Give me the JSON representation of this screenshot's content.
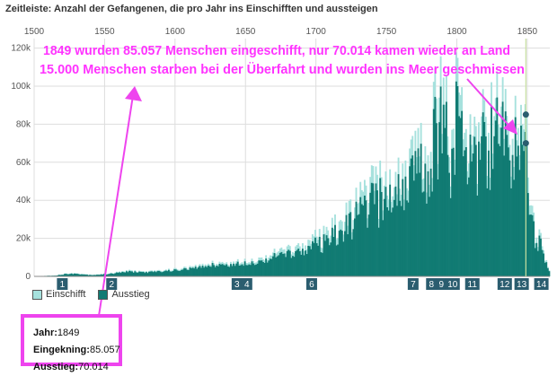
{
  "header": {
    "title": "Zeitleiste: Anzahl der Gefangenen, die pro Jahr ins Einschifften und aussteigen"
  },
  "colors": {
    "einschifft": "#a6e1dd",
    "ausstieg": "#117b73",
    "annotation": "#ff33ff",
    "marker": "#2b5d6f"
  },
  "chart_data": {
    "type": "bar",
    "x_ticks": [
      "1500",
      "1550",
      "1600",
      "1650",
      "1700",
      "1750",
      "1800",
      "1850"
    ],
    "y_ticks": [
      "0",
      "20k",
      "40k",
      "60k",
      "80k",
      "100k",
      "120k"
    ],
    "xlim": [
      1500,
      1866
    ],
    "ylim": [
      0,
      125000
    ],
    "series": [
      {
        "name": "Einschifft",
        "anchors": [
          [
            1500,
            100
          ],
          [
            1514,
            500
          ],
          [
            1525,
            1800
          ],
          [
            1540,
            900
          ],
          [
            1548,
            1200
          ],
          [
            1555,
            1700
          ],
          [
            1565,
            3000
          ],
          [
            1580,
            2500
          ],
          [
            1600,
            3800
          ],
          [
            1615,
            5200
          ],
          [
            1625,
            7000
          ],
          [
            1640,
            7000
          ],
          [
            1650,
            8500
          ],
          [
            1660,
            9000
          ],
          [
            1670,
            12500
          ],
          [
            1680,
            14000
          ],
          [
            1690,
            15800
          ],
          [
            1700,
            21000
          ],
          [
            1710,
            26000
          ],
          [
            1720,
            35000
          ],
          [
            1728,
            41000
          ],
          [
            1735,
            52000
          ],
          [
            1745,
            53000
          ],
          [
            1752,
            56000
          ],
          [
            1760,
            65000
          ],
          [
            1770,
            72000
          ],
          [
            1780,
            76000
          ],
          [
            1783,
            100000
          ],
          [
            1790,
            110000
          ],
          [
            1795,
            85000
          ],
          [
            1800,
            108000
          ],
          [
            1805,
            98000
          ],
          [
            1810,
            95000
          ],
          [
            1815,
            80000
          ],
          [
            1820,
            97000
          ],
          [
            1825,
            88000
          ],
          [
            1829,
            102000
          ],
          [
            1835,
            93000
          ],
          [
            1840,
            85000
          ],
          [
            1845,
            99000
          ],
          [
            1849,
            85057
          ],
          [
            1851,
            62000
          ],
          [
            1855,
            28000
          ],
          [
            1860,
            24000
          ],
          [
            1863,
            8000
          ],
          [
            1866,
            2000
          ]
        ]
      },
      {
        "name": "Ausstieg",
        "anchors": [
          [
            1500,
            80
          ],
          [
            1514,
            400
          ],
          [
            1525,
            1500
          ],
          [
            1540,
            700
          ],
          [
            1548,
            1000
          ],
          [
            1555,
            1400
          ],
          [
            1565,
            2500
          ],
          [
            1580,
            2100
          ],
          [
            1600,
            3200
          ],
          [
            1615,
            4400
          ],
          [
            1625,
            6000
          ],
          [
            1640,
            6000
          ],
          [
            1650,
            7200
          ],
          [
            1660,
            7600
          ],
          [
            1670,
            10500
          ],
          [
            1680,
            11800
          ],
          [
            1690,
            13200
          ],
          [
            1700,
            17500
          ],
          [
            1710,
            21600
          ],
          [
            1720,
            29000
          ],
          [
            1728,
            34500
          ],
          [
            1735,
            43500
          ],
          [
            1745,
            45000
          ],
          [
            1752,
            48000
          ],
          [
            1760,
            56000
          ],
          [
            1770,
            62000
          ],
          [
            1780,
            66000
          ],
          [
            1783,
            86000
          ],
          [
            1790,
            95000
          ],
          [
            1795,
            74000
          ],
          [
            1800,
            94000
          ],
          [
            1805,
            86000
          ],
          [
            1810,
            83000
          ],
          [
            1815,
            70000
          ],
          [
            1820,
            85000
          ],
          [
            1825,
            77000
          ],
          [
            1829,
            89000
          ],
          [
            1835,
            82000
          ],
          [
            1840,
            75000
          ],
          [
            1845,
            87000
          ],
          [
            1849,
            70014
          ],
          [
            1851,
            54000
          ],
          [
            1855,
            24000
          ],
          [
            1860,
            21000
          ],
          [
            1863,
            7000
          ],
          [
            1866,
            1700
          ]
        ]
      }
    ],
    "markers": [
      {
        "label": "1",
        "year": 1520
      },
      {
        "label": "2",
        "year": 1555
      },
      {
        "label": "3",
        "year": 1644
      },
      {
        "label": "4",
        "year": 1651
      },
      {
        "label": "6",
        "year": 1697
      },
      {
        "label": "7",
        "year": 1769
      },
      {
        "label": "8",
        "year": 1782
      },
      {
        "label": "9",
        "year": 1789
      },
      {
        "label": "10",
        "year": 1797
      },
      {
        "label": "11",
        "year": 1811
      },
      {
        "label": "12",
        "year": 1834
      },
      {
        "label": "13",
        "year": 1846
      },
      {
        "label": "14",
        "year": 1860
      }
    ],
    "highlight": {
      "year": 1849,
      "einschifft": 85057,
      "ausstieg": 70014
    }
  },
  "annotation": {
    "line1": "1849 wurden 85.057 Menschen eingeschifft, nur 70.014 kamen wieder an Land",
    "line2": "15.000 Menschen starben bei der Überfahrt und wurden ins Meer geschmissen"
  },
  "legend": [
    {
      "label": "Einschifft",
      "color": "#a6e1dd"
    },
    {
      "label": "Ausstieg",
      "color": "#117b73"
    }
  ],
  "infobox": {
    "year_label": "Jahr:",
    "year_value": "1849",
    "embark_label": "Eingekning:",
    "embark_value": "85.057",
    "disembark_label": "Ausstieg:",
    "disembark_value": "70.014"
  }
}
